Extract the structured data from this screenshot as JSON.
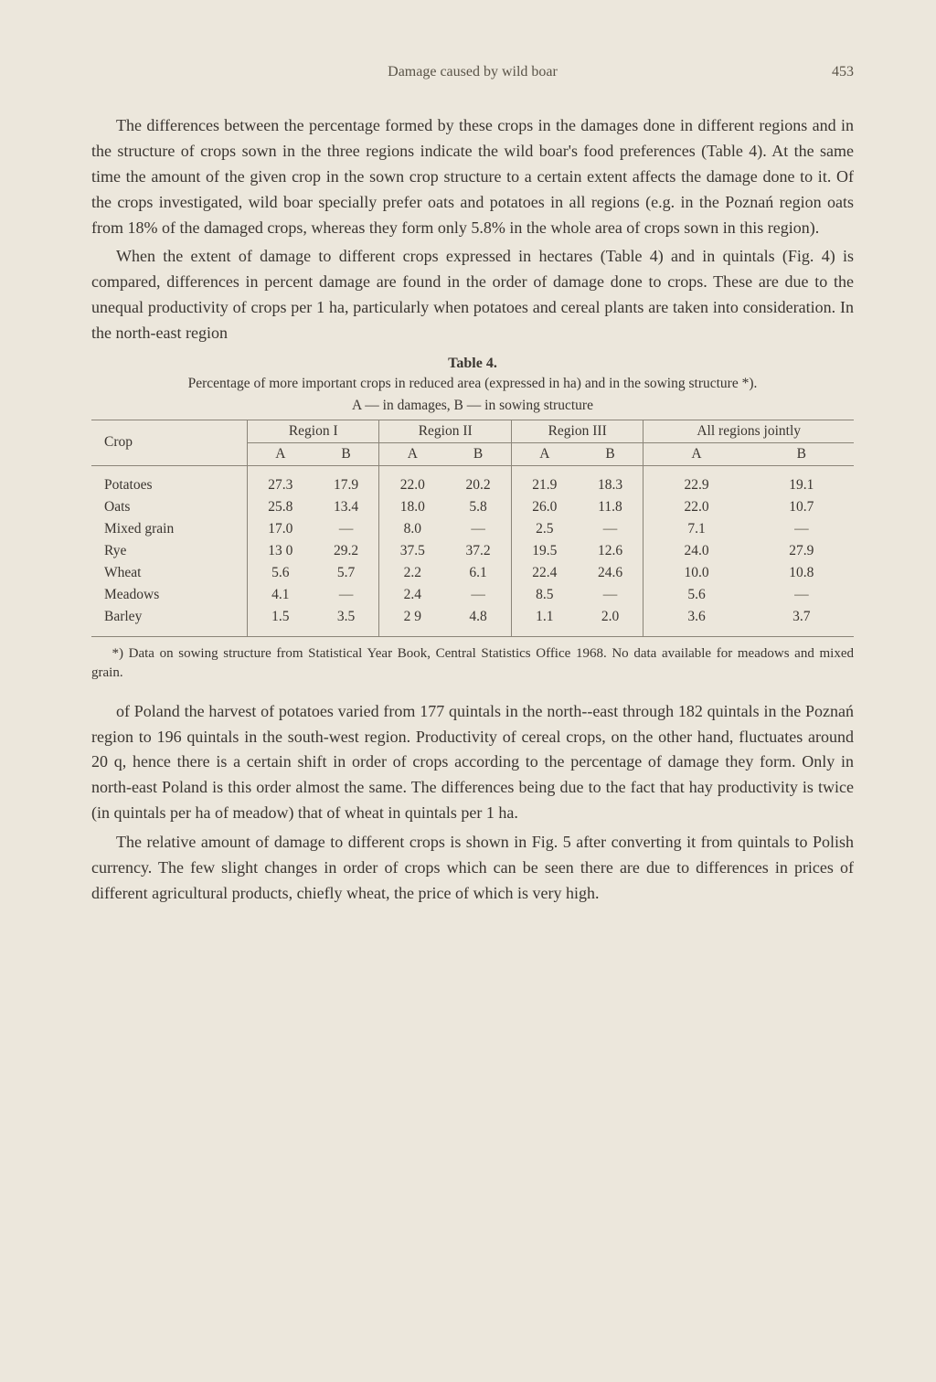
{
  "header": {
    "running_head": "Damage caused by wild boar",
    "page_number": "453"
  },
  "paragraphs": {
    "p1": "The differences between the percentage formed by these crops in the damages done in different regions and in the structure of crops sown in the three regions indicate the wild boar's food preferences (Table 4). At the same time the amount of the given crop in the sown crop structure to a certain extent affects the damage done to it. Of the crops investigated, wild boar specially prefer oats and potatoes in all regions (e.g. in the Poznań region oats from 18% of the damaged crops, whereas they form only 5.8% in the whole area of crops sown in this region).",
    "p2": "When the extent of damage to different crops expressed in hectares (Table 4) and in quintals (Fig. 4) is compared, differences in percent damage are found in the order of damage done to crops. These are due to the unequal productivity of crops per 1 ha, particularly when potatoes and cereal plants are taken into consideration. In the north-east region",
    "p3": "of Poland the harvest of potatoes varied from 177 quintals in the north-­-east through 182 quintals in the Poznań region to 196 quintals in the south-west region. Productivity of cereal crops, on the other hand, fluctuates around 20 q, hence there is a certain shift in order of crops according to the percentage of damage they form. Only in north-east Poland is this order almost the same. The differences being due to the fact that hay productivity is twice (in quintals per ha of meadow) that of wheat in quintals per 1 ha.",
    "p4": "The relative amount of damage to different crops is shown in Fig. 5 after converting it from quintals to Polish currency. The few slight changes in order of crops which can be seen there are due to differences in prices of different agricultural products, chiefly wheat, the price of which is very high."
  },
  "table": {
    "label": "Table 4.",
    "caption": "Percentage of more important crops in reduced area (expressed in ha) and in the sowing structure *).",
    "subcaption": "A — in damages, B — in sowing structure",
    "crop_header": "Crop",
    "regions": [
      "Region I",
      "Region II",
      "Region III",
      "All regions jointly"
    ],
    "subcols": [
      "A",
      "B"
    ],
    "rows": [
      {
        "crop": "Potatoes",
        "r1a": "27.3",
        "r1b": "17.9",
        "r2a": "22.0",
        "r2b": "20.2",
        "r3a": "21.9",
        "r3b": "18.3",
        "r4a": "22.9",
        "r4b": "19.1"
      },
      {
        "crop": "Oats",
        "r1a": "25.8",
        "r1b": "13.4",
        "r2a": "18.0",
        "r2b": "5.8",
        "r3a": "26.0",
        "r3b": "11.8",
        "r4a": "22.0",
        "r4b": "10.7"
      },
      {
        "crop": "Mixed grain",
        "r1a": "17.0",
        "r1b": "—",
        "r2a": "8.0",
        "r2b": "—",
        "r3a": "2.5",
        "r3b": "—",
        "r4a": "7.1",
        "r4b": "—"
      },
      {
        "crop": "Rye",
        "r1a": "13 0",
        "r1b": "29.2",
        "r2a": "37.5",
        "r2b": "37.2",
        "r3a": "19.5",
        "r3b": "12.6",
        "r4a": "24.0",
        "r4b": "27.9"
      },
      {
        "crop": "Wheat",
        "r1a": "5.6",
        "r1b": "5.7",
        "r2a": "2.2",
        "r2b": "6.1",
        "r3a": "22.4",
        "r3b": "24.6",
        "r4a": "10.0",
        "r4b": "10.8"
      },
      {
        "crop": "Meadows",
        "r1a": "4.1",
        "r1b": "—",
        "r2a": "2.4",
        "r2b": "—",
        "r3a": "8.5",
        "r3b": "—",
        "r4a": "5.6",
        "r4b": "—"
      },
      {
        "crop": "Barley",
        "r1a": "1.5",
        "r1b": "3.5",
        "r2a": "2 9",
        "r2b": "4.8",
        "r3a": "1.1",
        "r3b": "2.0",
        "r4a": "3.6",
        "r4b": "3.7"
      }
    ]
  },
  "footnote": "*) Data on sowing structure from Statistical Year Book, Central Statistics Office 1968. No data available for meadows and mixed grain."
}
